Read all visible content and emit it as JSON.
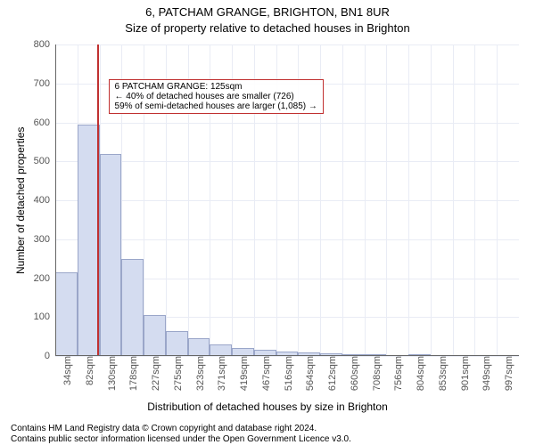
{
  "meta": {
    "title1": "6, PATCHAM GRANGE, BRIGHTON, BN1 8UR",
    "title2": "Size of property relative to detached houses in Brighton",
    "ylabel": "Number of detached properties",
    "xlabel": "Distribution of detached houses by size in Brighton",
    "footer1": "Contains HM Land Registry data © Crown copyright and database right 2024.",
    "footer2": "Contains public sector information licensed under the Open Government Licence v3.0.",
    "title_fontsize": 13,
    "subtitle_fontsize": 13,
    "label_fontsize": 12,
    "tick_fontsize": 11,
    "footer_fontsize": 10,
    "annot_fontsize": 10
  },
  "chart": {
    "type": "histogram",
    "background_color": "#ffffff",
    "grid_color": "#e9ecf5",
    "axis_color": "#666666",
    "tick_color": "#555555",
    "bar_fill": "#d4dcf0",
    "bar_stroke": "#9aa6c9",
    "bar_stroke_width": 1,
    "marker_color": "#c03030",
    "annot_border": "#c03030",
    "ylim": [
      0,
      800
    ],
    "yticks": [
      0,
      100,
      200,
      300,
      400,
      500,
      600,
      700,
      800
    ],
    "xticks_labels": [
      "34sqm",
      "82sqm",
      "130sqm",
      "178sqm",
      "227sqm",
      "275sqm",
      "323sqm",
      "371sqm",
      "419sqm",
      "467sqm",
      "516sqm",
      "564sqm",
      "612sqm",
      "660sqm",
      "708sqm",
      "756sqm",
      "804sqm",
      "853sqm",
      "901sqm",
      "949sqm",
      "997sqm"
    ],
    "bars": [
      {
        "x_label": "34sqm",
        "value": 215
      },
      {
        "x_label": "82sqm",
        "value": 595
      },
      {
        "x_label": "130sqm",
        "value": 520
      },
      {
        "x_label": "178sqm",
        "value": 250
      },
      {
        "x_label": "227sqm",
        "value": 105
      },
      {
        "x_label": "275sqm",
        "value": 65
      },
      {
        "x_label": "323sqm",
        "value": 45
      },
      {
        "x_label": "371sqm",
        "value": 30
      },
      {
        "x_label": "419sqm",
        "value": 20
      },
      {
        "x_label": "467sqm",
        "value": 15
      },
      {
        "x_label": "516sqm",
        "value": 12
      },
      {
        "x_label": "564sqm",
        "value": 10
      },
      {
        "x_label": "612sqm",
        "value": 8
      },
      {
        "x_label": "660sqm",
        "value": 2
      },
      {
        "x_label": "708sqm",
        "value": 1
      },
      {
        "x_label": "756sqm",
        "value": 0
      },
      {
        "x_label": "804sqm",
        "value": 5
      },
      {
        "x_label": "853sqm",
        "value": 0
      },
      {
        "x_label": "901sqm",
        "value": 0
      },
      {
        "x_label": "949sqm",
        "value": 0
      },
      {
        "x_label": "997sqm",
        "value": 0
      }
    ],
    "marker_bin_index": 1.9,
    "annotation": {
      "line1": "6 PATCHAM GRANGE: 125sqm",
      "line2": "← 40% of detached houses are smaller (726)",
      "line3": "59% of semi-detached houses are larger (1,085) →"
    }
  }
}
